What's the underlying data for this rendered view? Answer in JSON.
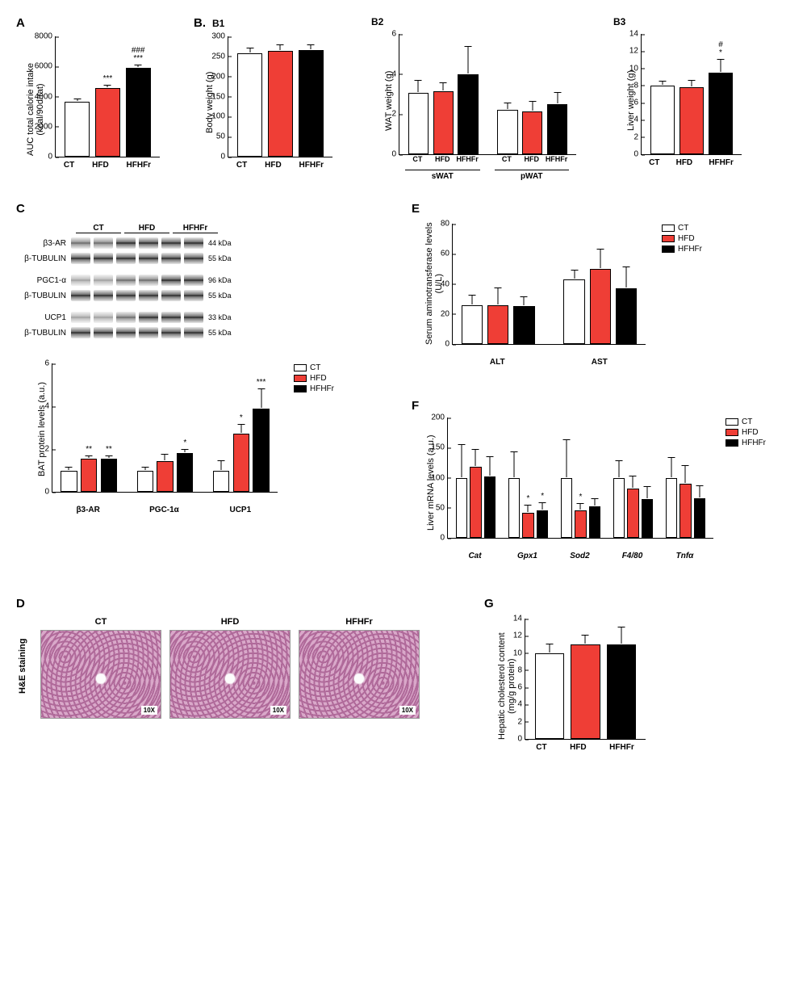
{
  "colors": {
    "CT": "#ffffff",
    "HFD": "#ef3e36",
    "HFHFr": "#000000",
    "axis": "#000000"
  },
  "groups": [
    "CT",
    "HFD",
    "HFHFr"
  ],
  "legend": {
    "items": [
      {
        "label": "CT",
        "color": "#ffffff"
      },
      {
        "label": "HFD",
        "color": "#ef3e36"
      },
      {
        "label": "HFHFr",
        "color": "#000000"
      }
    ]
  },
  "panels": {
    "A": {
      "label": "A",
      "ylabel": "AUC total calorie intake\n(kcal/90d/rat)",
      "ylim": [
        0,
        8000
      ],
      "ytick_step": 2000,
      "bars": [
        {
          "group": "CT",
          "value": 3650,
          "err": 150,
          "sig": ""
        },
        {
          "group": "HFD",
          "value": 4550,
          "err": 150,
          "sig": "***"
        },
        {
          "group": "HFHFr",
          "value": 5900,
          "err": 180,
          "sig": "###\n***"
        }
      ]
    },
    "B1": {
      "label": "B.",
      "sub": "B1",
      "ylabel": "Body weight (g)",
      "ylim": [
        0,
        300
      ],
      "ytick_step": 50,
      "bars": [
        {
          "group": "CT",
          "value": 258,
          "err": 12,
          "sig": ""
        },
        {
          "group": "HFD",
          "value": 263,
          "err": 14,
          "sig": ""
        },
        {
          "group": "HFHFr",
          "value": 265,
          "err": 12,
          "sig": ""
        }
      ]
    },
    "B2": {
      "sub": "B2",
      "ylabel": "WAT weight (g)",
      "ylim": [
        0,
        6
      ],
      "ytick_step": 2,
      "group_labels": [
        "sWAT",
        "pWAT"
      ],
      "bars": [
        {
          "group": "CT",
          "value": 3.05,
          "err": 0.6,
          "sig": ""
        },
        {
          "group": "HFD",
          "value": 3.15,
          "err": 0.4,
          "sig": ""
        },
        {
          "group": "HFHFr",
          "value": 4.0,
          "err": 1.35,
          "sig": ""
        },
        {
          "group": "CT",
          "value": 2.2,
          "err": 0.35,
          "sig": ""
        },
        {
          "group": "HFD",
          "value": 2.15,
          "err": 0.45,
          "sig": ""
        },
        {
          "group": "HFHFr",
          "value": 2.5,
          "err": 0.55,
          "sig": ""
        }
      ]
    },
    "B3": {
      "sub": "B3",
      "ylabel": "Liver weight (g)",
      "ylim": [
        0,
        14
      ],
      "ytick_step": 2,
      "bars": [
        {
          "group": "CT",
          "value": 7.95,
          "err": 0.5,
          "sig": ""
        },
        {
          "group": "HFD",
          "value": 7.8,
          "err": 0.8,
          "sig": ""
        },
        {
          "group": "HFHFr",
          "value": 9.5,
          "err": 1.5,
          "sig": "#\n*"
        }
      ]
    },
    "C": {
      "label": "C",
      "blots": [
        {
          "name": "β3-AR",
          "kda": "44 kDa",
          "intensity": [
            "mid",
            "mid",
            "strong",
            "strong",
            "strong",
            "strong"
          ]
        },
        {
          "name": "β-TUBULIN",
          "kda": "55 kDa",
          "intensity": [
            "strong",
            "strong",
            "strong",
            "strong",
            "strong",
            "strong"
          ]
        },
        {
          "name": "PGC1-α",
          "kda": "96 kDa",
          "intensity": [
            "faint",
            "faint",
            "mid",
            "mid",
            "strong",
            "strong"
          ]
        },
        {
          "name": "β-TUBULIN",
          "kda": "55 kDa",
          "intensity": [
            "strong",
            "strong",
            "strong",
            "strong",
            "strong",
            "strong"
          ]
        },
        {
          "name": "UCP1",
          "kda": "33 kDa",
          "intensity": [
            "faint",
            "faint",
            "mid",
            "strong",
            "strong",
            "strong"
          ]
        },
        {
          "name": "β-TUBULIN",
          "kda": "55 kDa",
          "intensity": [
            "strong",
            "strong",
            "strong",
            "strong",
            "strong",
            "strong"
          ]
        }
      ],
      "blot_headers": [
        "CT",
        "HFD",
        "HFHFr"
      ],
      "chart": {
        "ylabel": "BAT protein levels (a.u.)",
        "ylim": [
          0,
          6
        ],
        "ytick_step": 2,
        "xcats": [
          "β3-AR",
          "PGC-1α",
          "UCP1"
        ],
        "bars": [
          {
            "group": "CT",
            "value": 1.0,
            "err": 0.15,
            "sig": ""
          },
          {
            "group": "HFD",
            "value": 1.55,
            "err": 0.1,
            "sig": "**"
          },
          {
            "group": "HFHFr",
            "value": 1.55,
            "err": 0.1,
            "sig": "**"
          },
          {
            "group": "CT",
            "value": 1.0,
            "err": 0.15,
            "sig": ""
          },
          {
            "group": "HFD",
            "value": 1.45,
            "err": 0.3,
            "sig": ""
          },
          {
            "group": "HFHFr",
            "value": 1.8,
            "err": 0.15,
            "sig": "*"
          },
          {
            "group": "CT",
            "value": 1.0,
            "err": 0.45,
            "sig": ""
          },
          {
            "group": "HFD",
            "value": 2.7,
            "err": 0.45,
            "sig": "*"
          },
          {
            "group": "HFHFr",
            "value": 3.9,
            "err": 0.9,
            "sig": "***"
          }
        ]
      }
    },
    "D": {
      "label": "D",
      "side_label": "H&E staining",
      "mag": "10X",
      "titles": [
        "CT",
        "HFD",
        "HFHFr"
      ]
    },
    "E": {
      "label": "E",
      "ylabel": "Serum aminotransferase levels\n(U/L)",
      "ylim": [
        0,
        80
      ],
      "ytick_step": 20,
      "xcats": [
        "ALT",
        "AST"
      ],
      "bars": [
        {
          "group": "CT",
          "value": 26,
          "err": 6,
          "sig": ""
        },
        {
          "group": "HFD",
          "value": 26,
          "err": 11,
          "sig": ""
        },
        {
          "group": "HFHFr",
          "value": 25,
          "err": 6,
          "sig": ""
        },
        {
          "group": "CT",
          "value": 43,
          "err": 6,
          "sig": ""
        },
        {
          "group": "HFD",
          "value": 50,
          "err": 13,
          "sig": ""
        },
        {
          "group": "HFHFr",
          "value": 37,
          "err": 14,
          "sig": ""
        }
      ]
    },
    "F": {
      "label": "F",
      "ylabel": "Liver mRNA levels (a.u.)",
      "ylim": [
        0,
        200
      ],
      "ytick_step": 50,
      "xcats": [
        "Cat",
        "Gpx1",
        "Sod2",
        "F4/80",
        "Tnfα"
      ],
      "italic": true,
      "bars": [
        {
          "group": "CT",
          "value": 100,
          "err": 55,
          "sig": ""
        },
        {
          "group": "HFD",
          "value": 118,
          "err": 28,
          "sig": ""
        },
        {
          "group": "HFHFr",
          "value": 102,
          "err": 32,
          "sig": ""
        },
        {
          "group": "CT",
          "value": 100,
          "err": 42,
          "sig": ""
        },
        {
          "group": "HFD",
          "value": 42,
          "err": 12,
          "sig": "*"
        },
        {
          "group": "HFHFr",
          "value": 46,
          "err": 12,
          "sig": "*"
        },
        {
          "group": "CT",
          "value": 100,
          "err": 62,
          "sig": ""
        },
        {
          "group": "HFD",
          "value": 45,
          "err": 12,
          "sig": "*"
        },
        {
          "group": "HFHFr",
          "value": 52,
          "err": 12,
          "sig": ""
        },
        {
          "group": "CT",
          "value": 100,
          "err": 28,
          "sig": ""
        },
        {
          "group": "HFD",
          "value": 82,
          "err": 20,
          "sig": ""
        },
        {
          "group": "HFHFr",
          "value": 64,
          "err": 20,
          "sig": ""
        },
        {
          "group": "CT",
          "value": 100,
          "err": 33,
          "sig": ""
        },
        {
          "group": "HFD",
          "value": 90,
          "err": 30,
          "sig": ""
        },
        {
          "group": "HFHFr",
          "value": 66,
          "err": 20,
          "sig": ""
        }
      ]
    },
    "G": {
      "label": "G",
      "ylabel": "Hepatic cholesterol content\n(mg/g protein)",
      "ylim": [
        0,
        14
      ],
      "ytick_step": 2,
      "bars": [
        {
          "group": "CT",
          "value": 10.0,
          "err": 1.0,
          "sig": ""
        },
        {
          "group": "HFD",
          "value": 11.0,
          "err": 1.0,
          "sig": ""
        },
        {
          "group": "HFHFr",
          "value": 11.0,
          "err": 2.0,
          "sig": ""
        }
      ]
    }
  }
}
